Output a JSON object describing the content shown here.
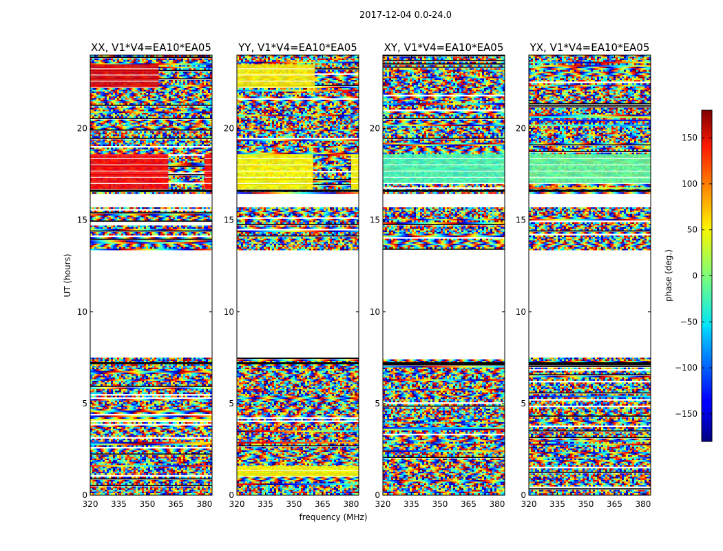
{
  "chart_data": {
    "type": "heatmap",
    "suptitle": "2017-12-04 0.0-24.0",
    "xlabel": "frequency (MHz)",
    "ylabel": "UT (hours)",
    "xlim": [
      320,
      384
    ],
    "ylim": [
      0,
      24
    ],
    "xticks": [
      320,
      335,
      350,
      365,
      380
    ],
    "yticks": [
      0,
      5,
      10,
      15,
      20
    ],
    "panels": [
      {
        "pol": "XX",
        "title": "XX, V1*V4=EA10*EA05",
        "coherent_bands": [
          {
            "y0": 16.6,
            "y1": 18.6,
            "f0": 320,
            "f1": 361,
            "phase": 135
          },
          {
            "y0": 22.2,
            "y1": 23.5,
            "f0": 320,
            "f1": 356,
            "phase": 145
          },
          {
            "y0": 16.6,
            "y1": 18.6,
            "f0": 380,
            "f1": 384,
            "phase": 135
          }
        ]
      },
      {
        "pol": "YY",
        "title": "YY, V1*V4=EA10*EA05",
        "coherent_bands": [
          {
            "y0": 16.6,
            "y1": 18.6,
            "f0": 320,
            "f1": 360,
            "phase": 45
          },
          {
            "y0": 22.2,
            "y1": 23.5,
            "f0": 320,
            "f1": 361,
            "phase": 50
          },
          {
            "y0": 1.0,
            "y1": 1.6,
            "f0": 320,
            "f1": 384,
            "phase": 45
          },
          {
            "y0": 16.6,
            "y1": 18.6,
            "f0": 380,
            "f1": 384,
            "phase": 45
          }
        ]
      },
      {
        "pol": "XY",
        "title": "XY, V1*V4=EA10*EA05",
        "coherent_bands": [
          {
            "y0": 17.0,
            "y1": 18.6,
            "f0": 320,
            "f1": 384,
            "phase": -20
          }
        ]
      },
      {
        "pol": "YX",
        "title": "YX, V1*V4=EA10*EA05",
        "coherent_bands": [
          {
            "y0": 17.0,
            "y1": 18.6,
            "f0": 320,
            "f1": 384,
            "phase": -10
          }
        ]
      }
    ],
    "data_segments_hours": [
      [
        0.0,
        7.5
      ],
      [
        13.4,
        15.7
      ],
      [
        16.5,
        24.0
      ]
    ],
    "colorbar": {
      "label": "phase (deg.)",
      "range": [
        -180,
        180
      ],
      "ticks": [
        150,
        100,
        50,
        0,
        -50,
        -100,
        -150
      ],
      "tick_labels": [
        "150",
        "100",
        "50",
        "0",
        "−50",
        "−100",
        "−150"
      ],
      "colormap": "jet"
    }
  }
}
